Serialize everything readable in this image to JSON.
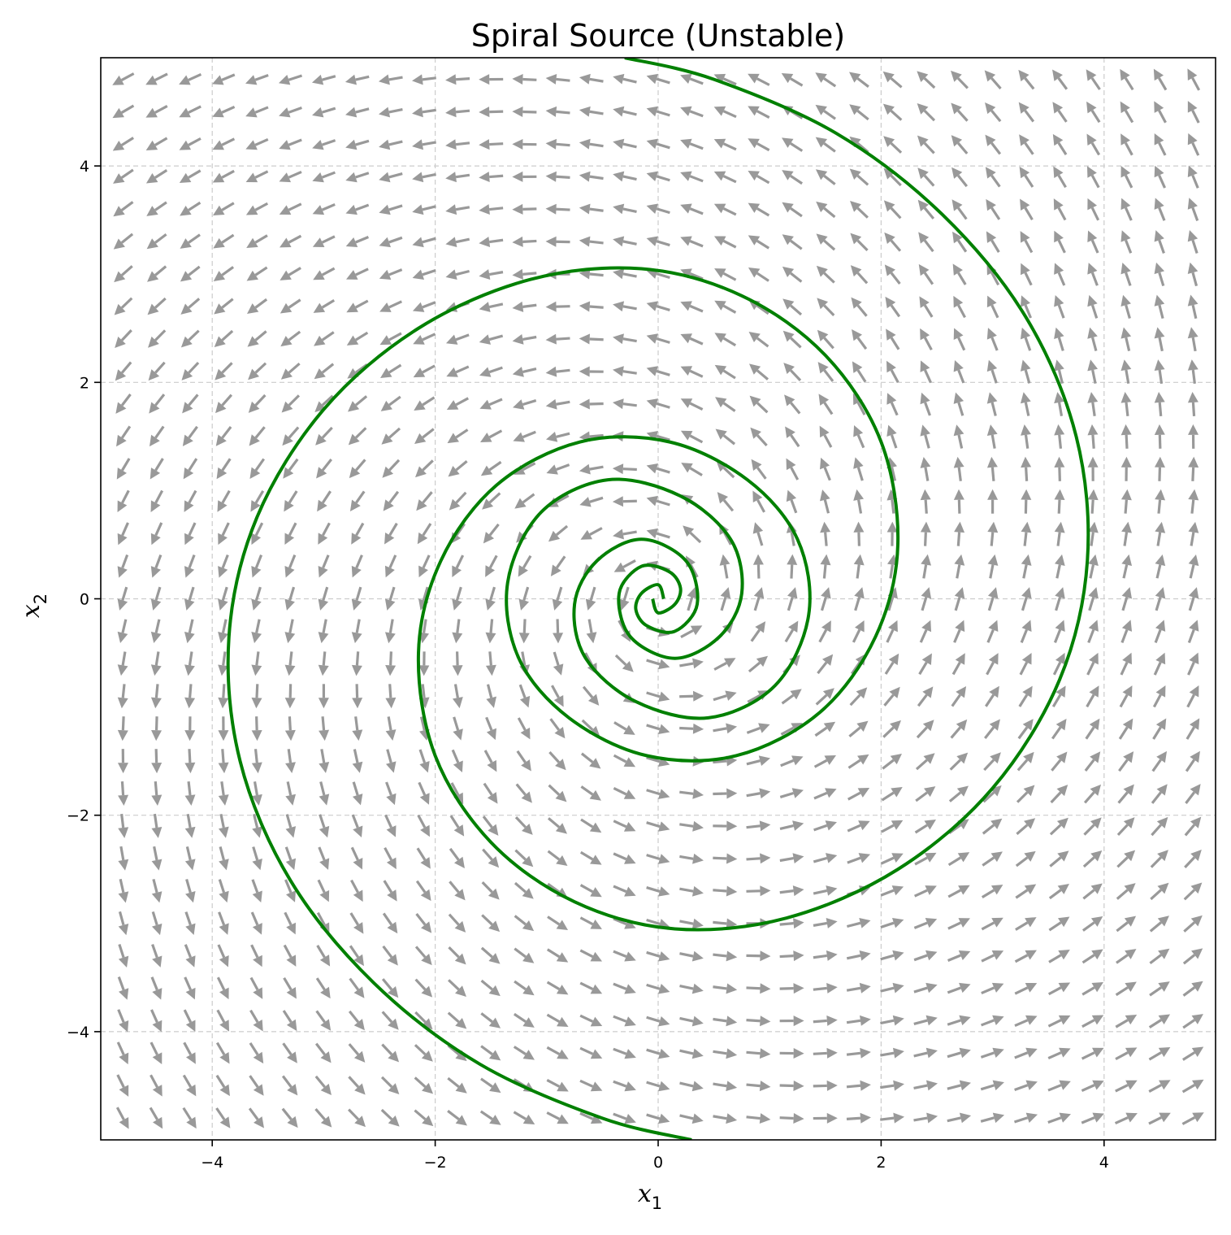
{
  "chart_data": {
    "type": "line",
    "title": "Spiral Source (Unstable)",
    "xlabel": {
      "base": "x",
      "sub": "1"
    },
    "ylabel": {
      "base": "x",
      "sub": "2"
    },
    "xlim": [
      -5,
      5
    ],
    "ylim": [
      -5,
      5
    ],
    "x_ticks": [
      -4,
      -2,
      0,
      2,
      4
    ],
    "y_ticks": [
      -4,
      -2,
      0,
      2,
      4
    ],
    "x_tick_labels": [
      "−4",
      "−2",
      "0",
      "2",
      "4"
    ],
    "y_tick_labels": [
      "−4",
      "−2",
      "0",
      "2",
      "4"
    ],
    "grid": true,
    "system": {
      "description_matrix": [
        [
          0.3,
          -1.0
        ],
        [
          1.0,
          0.3
        ]
      ],
      "vector_field_grid": {
        "min": -4.8,
        "max": 4.8,
        "count": 33
      }
    },
    "series": [
      {
        "style": "trajectory",
        "points": [
          [
            0.05,
            0.0
          ],
          [
            0.0,
            0.13
          ],
          [
            -0.15,
            0.05
          ],
          [
            -0.2,
            -0.1
          ],
          [
            -0.1,
            -0.25
          ],
          [
            0.15,
            -0.3
          ],
          [
            0.35,
            -0.05
          ],
          [
            0.25,
            0.35
          ],
          [
            -0.15,
            0.55
          ],
          [
            -0.55,
            0.35
          ],
          [
            -0.75,
            -0.05
          ],
          [
            -0.65,
            -0.55
          ],
          [
            -0.2,
            -0.95
          ],
          [
            0.45,
            -1.1
          ],
          [
            1.05,
            -0.8
          ],
          [
            1.35,
            -0.15
          ],
          [
            1.25,
            0.55
          ],
          [
            0.8,
            1.1
          ],
          [
            0.1,
            1.45
          ],
          [
            -0.7,
            1.45
          ],
          [
            -1.45,
            1.05
          ],
          [
            -1.95,
            0.35
          ],
          [
            -2.15,
            -0.5
          ],
          [
            -2.0,
            -1.45
          ],
          [
            -1.5,
            -2.25
          ],
          [
            -0.75,
            -2.8
          ],
          [
            0.15,
            -3.05
          ],
          [
            1.15,
            -2.95
          ],
          [
            2.15,
            -2.5
          ],
          [
            3.0,
            -1.75
          ],
          [
            3.6,
            -0.75
          ],
          [
            3.85,
            0.35
          ],
          [
            3.75,
            1.5
          ],
          [
            3.3,
            2.6
          ],
          [
            2.55,
            3.55
          ],
          [
            1.6,
            4.3
          ],
          [
            0.5,
            4.8
          ],
          [
            -0.3,
            5.0
          ]
        ],
        "color": "#008000"
      },
      {
        "style": "trajectory",
        "points": [
          [
            -0.05,
            0.0
          ],
          [
            0.0,
            -0.13
          ],
          [
            0.15,
            -0.05
          ],
          [
            0.2,
            0.1
          ],
          [
            0.1,
            0.25
          ],
          [
            -0.15,
            0.3
          ],
          [
            -0.35,
            0.05
          ],
          [
            -0.25,
            -0.35
          ],
          [
            0.15,
            -0.55
          ],
          [
            0.55,
            -0.35
          ],
          [
            0.75,
            0.05
          ],
          [
            0.65,
            0.55
          ],
          [
            0.2,
            0.95
          ],
          [
            -0.45,
            1.1
          ],
          [
            -1.05,
            0.8
          ],
          [
            -1.35,
            0.15
          ],
          [
            -1.25,
            -0.55
          ],
          [
            -0.8,
            -1.1
          ],
          [
            -0.1,
            -1.45
          ],
          [
            0.7,
            -1.45
          ],
          [
            1.45,
            -1.05
          ],
          [
            1.95,
            -0.35
          ],
          [
            2.15,
            0.5
          ],
          [
            2.0,
            1.45
          ],
          [
            1.5,
            2.25
          ],
          [
            0.75,
            2.8
          ],
          [
            -0.15,
            3.05
          ],
          [
            -1.15,
            2.95
          ],
          [
            -2.15,
            2.5
          ],
          [
            -3.0,
            1.75
          ],
          [
            -3.6,
            0.75
          ],
          [
            -3.85,
            -0.35
          ],
          [
            -3.75,
            -1.5
          ],
          [
            -3.3,
            -2.6
          ],
          [
            -2.55,
            -3.55
          ],
          [
            -1.6,
            -4.3
          ],
          [
            -0.5,
            -4.8
          ],
          [
            0.3,
            -5.0
          ]
        ],
        "color": "#008000"
      }
    ],
    "colors": {
      "trajectory": "#008000",
      "arrows": "#999999",
      "grid": "#cccccc",
      "axes": "#000000"
    }
  }
}
